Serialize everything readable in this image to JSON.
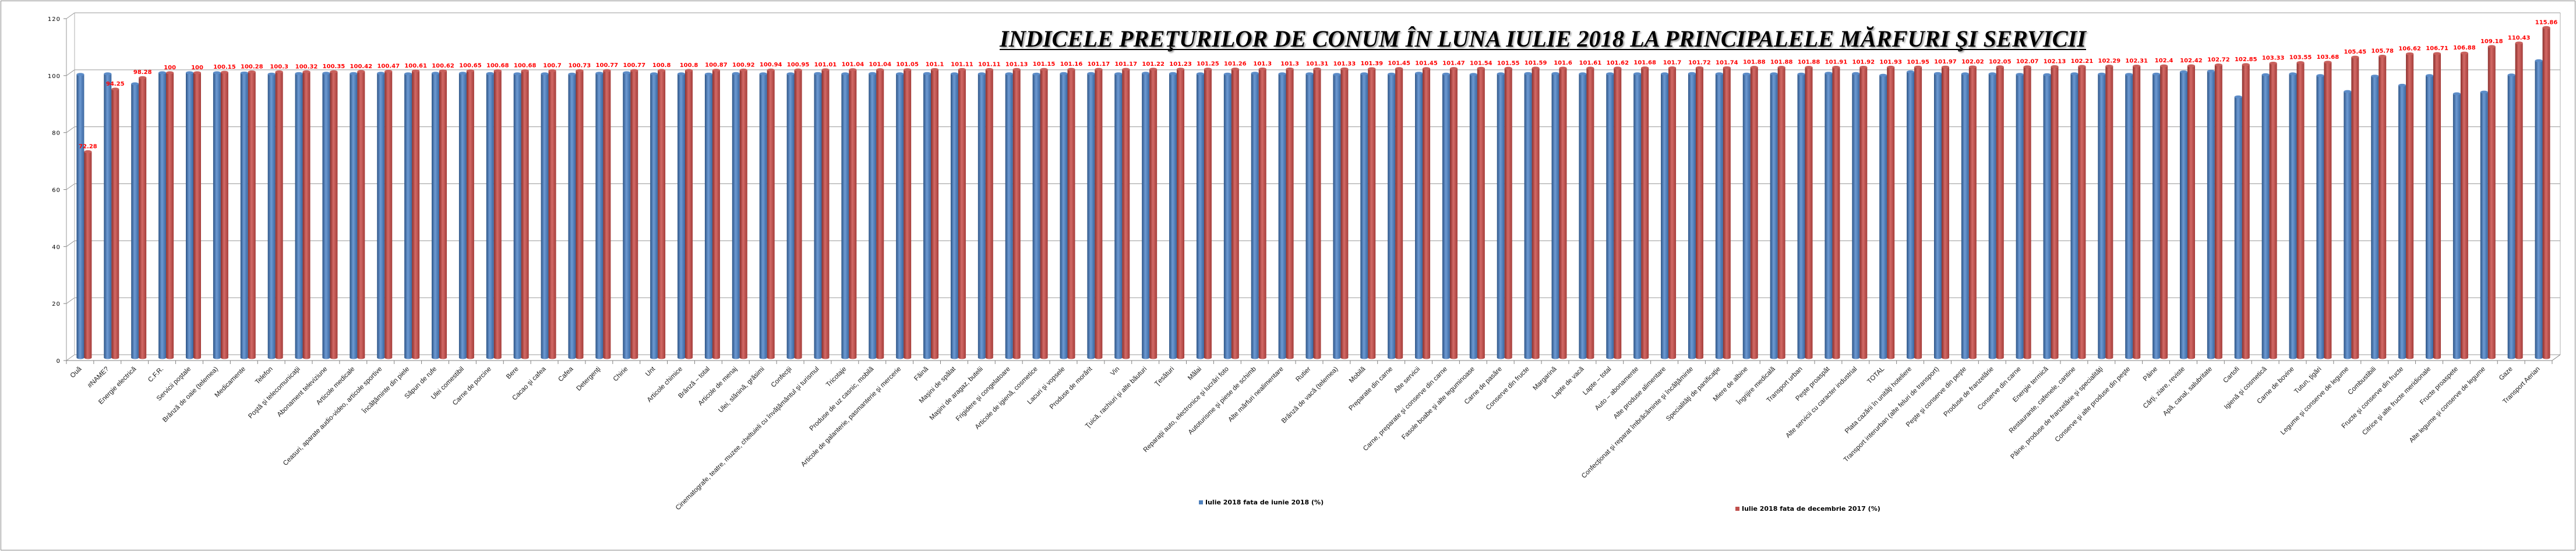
{
  "chart_data": {
    "type": "bar",
    "style": "3d-cylinder-clustered",
    "title": "INDICELE PREŢURILOR DE CONUM ÎN LUNA IULIE 2018 LA PRINCIPALELE MĂRFURI ŞI SERVICII",
    "xlabel": "",
    "ylabel": "",
    "ylim": [
      0,
      120
    ],
    "yticks": [
      "0",
      "20",
      "40",
      "60",
      "80",
      "100",
      "120"
    ],
    "grid": true,
    "legend_position": "bottom",
    "categories": [
      "Ouă",
      "#NAME?",
      "Energie electrică",
      "C.F.R.",
      "Servicii poştale",
      "Brânză de oaie (telemea)",
      "Medicamente",
      "Telefon",
      "Poştă şi telecomunicaţii",
      "Abonament televiziune",
      "Articole medicale",
      "Ceasuri, aparate audio-video, articole sportive",
      "Încălţăminte din piele",
      "Săpun de rufe",
      "Ulei comestibil",
      "Carne de porcine",
      "Bere",
      "Cacao şi cafea",
      "Cafea",
      "Detergenţi",
      "Chirie",
      "Unt",
      "Articole chimice",
      "Brânză – total",
      "Articole de menaj",
      "Ulei, slănină, grăsimi",
      "Confecţii",
      "Cinematografe, teatre, muzee, cheltuieli cu învăţământul  şi turismul",
      "Tricotaje",
      "Produse de uz casnic, mobilă",
      "Articole de galanterie, pasmanterie şi mercerie",
      "Făină",
      "Maşini de spălat",
      "Maşini de aragaz, butelii",
      "Frigidere şi congelatoare",
      "Articole de igienă, cosmetice",
      "Lacuri şi vopsele",
      "Produse de morărit",
      "Vin",
      "Ţuică, rachiuri şi alte băuturi",
      "Ţesături",
      "Mălai",
      "Reparaţii auto, electronice  şi lucrări foto",
      "Autoturisme şi piese de schimb",
      "Alte mărfuri nealimentare",
      "Rutier",
      "Brânză de vacă (telemea)",
      "Mobilă",
      "Preparate din carne",
      "Alte servicii",
      "Carne, preparate şi conserve din carne",
      "Fasole boabe şi alte leguminoase",
      "Carne de pasăre",
      "Conserve din fructe",
      "Margarină",
      "Lapte de vacă",
      "Lapte – total",
      "Auto – abonamente",
      "Alte produse alimentare",
      "Confecţionat şi reparat îmbrăcăminte şi încălţăminte",
      "Specialităţi de panificaţie",
      "Miere de albine",
      "Îngrijire medicală",
      "Transport urban",
      "Peşte proaspăt",
      "Alte servicii cu caracter industrial",
      "TOTAL",
      "Plata cazării în unităţi hoteliere",
      "Transport interurban (alte feluri de transport)",
      "Peşte şi conserve din peşte",
      "Produse de franzelărie",
      "Conserve din carne",
      "Energie termică",
      "Restaurante, cafenele, cantine",
      "Pâine, produse de franzelărie  şi specialităţi",
      "Conserve şi alte produse din peşte",
      "Pâine",
      "Cărţi, ziare, reviste",
      "Apă, canal, salubritate",
      "Cartofi",
      "Igienă şi cosmetică",
      "Carne de bovine",
      "Tutun, ţigări",
      "Legume şi conserve de legume",
      "Combustibili",
      "Fructe şi conserve din fructe",
      "Citrice şi alte fructe meridionale",
      "Fructe proaspete",
      "Alte legume şi conserve de legume",
      "Gaze",
      "Transport Aerian"
    ],
    "series": [
      {
        "name": "Iulie 2018 fata de iunie 2018 (%)",
        "color": "#4f81bd",
        "values": [
          99.4,
          99.6,
          96.1,
          100,
          100,
          100,
          99.9,
          99.5,
          99.7,
          99.8,
          99.7,
          99.8,
          99.6,
          99.8,
          99.8,
          99.7,
          99.6,
          99.6,
          99.5,
          99.8,
          100,
          99.6,
          99.6,
          99.5,
          99.7,
          99.6,
          99.6,
          99.7,
          99.6,
          99.7,
          99.6,
          99.7,
          99.6,
          99.6,
          99.6,
          99.5,
          99.7,
          99.7,
          99.6,
          99.8,
          99.7,
          99.6,
          99.5,
          99.8,
          99.6,
          99.6,
          99.4,
          99.6,
          99.5,
          99.8,
          99.5,
          99.4,
          99.6,
          99.7,
          99.7,
          99.6,
          99.6,
          99.6,
          99.6,
          99.7,
          99.6,
          99.5,
          99.6,
          99.5,
          99.8,
          99.7,
          99.1,
          100.3,
          99.7,
          99.6,
          99.6,
          99.4,
          99.3,
          99.6,
          99.5,
          99.4,
          99.5,
          100.3,
          100.5,
          91.5,
          99.3,
          99.6,
          99.0,
          93.4,
          98.8,
          95.6,
          99.0,
          92.6,
          93.2,
          99.2,
          104.2
        ]
      },
      {
        "name": "Iulie 2018 fata de decembrie 2017 (%)",
        "color": "#c0504d",
        "values": [
          72.28,
          94.25,
          98.28,
          100,
          100,
          100.15,
          100.28,
          100.3,
          100.32,
          100.35,
          100.42,
          100.47,
          100.61,
          100.62,
          100.65,
          100.68,
          100.68,
          100.7,
          100.73,
          100.77,
          100.77,
          100.8,
          100.8,
          100.87,
          100.92,
          100.94,
          100.95,
          101.01,
          101.04,
          101.04,
          101.05,
          101.1,
          101.11,
          101.11,
          101.13,
          101.15,
          101.16,
          101.17,
          101.17,
          101.22,
          101.23,
          101.25,
          101.26,
          101.3,
          101.3,
          101.31,
          101.33,
          101.39,
          101.45,
          101.45,
          101.47,
          101.54,
          101.55,
          101.59,
          101.6,
          101.61,
          101.62,
          101.68,
          101.7,
          101.72,
          101.74,
          101.88,
          101.88,
          101.88,
          101.91,
          101.92,
          101.93,
          101.95,
          101.97,
          102.02,
          102.05,
          102.07,
          102.13,
          102.21,
          102.29,
          102.31,
          102.4,
          102.42,
          102.72,
          102.85,
          103.33,
          103.55,
          103.68,
          105.45,
          105.78,
          106.62,
          106.71,
          106.88,
          109.18,
          110.43,
          115.86
        ]
      }
    ],
    "data_label_color": "#ff0000"
  }
}
